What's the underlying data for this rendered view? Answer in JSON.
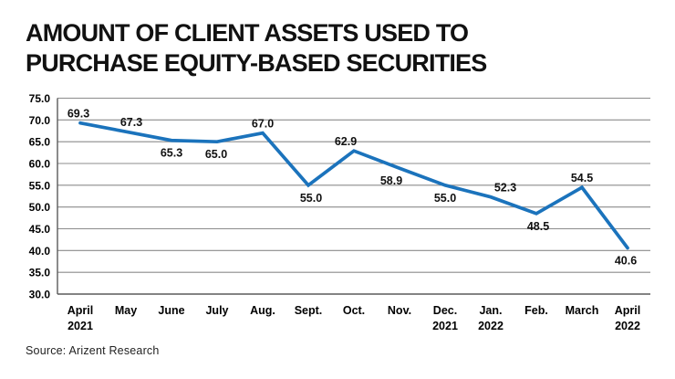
{
  "title_lines": [
    "AMOUNT OF CLIENT ASSETS USED TO",
    "PURCHASE EQUITY-BASED SECURITIES"
  ],
  "source": "Source: Arizent Research",
  "chart_data": {
    "type": "line",
    "title": "AMOUNT OF CLIENT ASSETS USED TO PURCHASE EQUITY-BASED SECURITIES",
    "categories": [
      [
        "April",
        "2021"
      ],
      [
        "May"
      ],
      [
        "June"
      ],
      [
        "July"
      ],
      [
        "Aug."
      ],
      [
        "Sept."
      ],
      [
        "Oct."
      ],
      [
        "Nov."
      ],
      [
        "Dec.",
        "2021"
      ],
      [
        "Jan.",
        "2022"
      ],
      [
        "Feb."
      ],
      [
        "March"
      ],
      [
        "April",
        "2022"
      ]
    ],
    "values": [
      69.3,
      67.3,
      65.3,
      65.0,
      67.0,
      55.0,
      62.9,
      58.9,
      55.0,
      52.3,
      48.5,
      54.5,
      40.6
    ],
    "data_labels": [
      "69.3",
      "67.3",
      "65.3",
      "65.0",
      "67.0",
      "55.0",
      "62.9",
      "58.9",
      "55.0",
      "52.3",
      "48.5",
      "54.5",
      "40.6"
    ],
    "label_positions": [
      "above",
      "above",
      "below",
      "below",
      "above",
      "below",
      "above",
      "below",
      "below",
      "above",
      "below",
      "above",
      "below"
    ],
    "label_dx": [
      -2,
      6,
      0,
      -1,
      0,
      3,
      -9,
      -9,
      0,
      16,
      2,
      0,
      -2
    ],
    "yticks": [
      "75.0",
      "70.0",
      "65.0",
      "60.0",
      "55.0",
      "50.0",
      "45.0",
      "40.0",
      "35.0",
      "30.0"
    ],
    "ylim": [
      30.0,
      75.0
    ],
    "ytick_step": 5.0,
    "grid": true,
    "legend": "none",
    "line_color": "#1b73bc",
    "grid_color": "#8c8c8c",
    "axis_color": "#5a5a5a",
    "label_color": "#000000"
  }
}
